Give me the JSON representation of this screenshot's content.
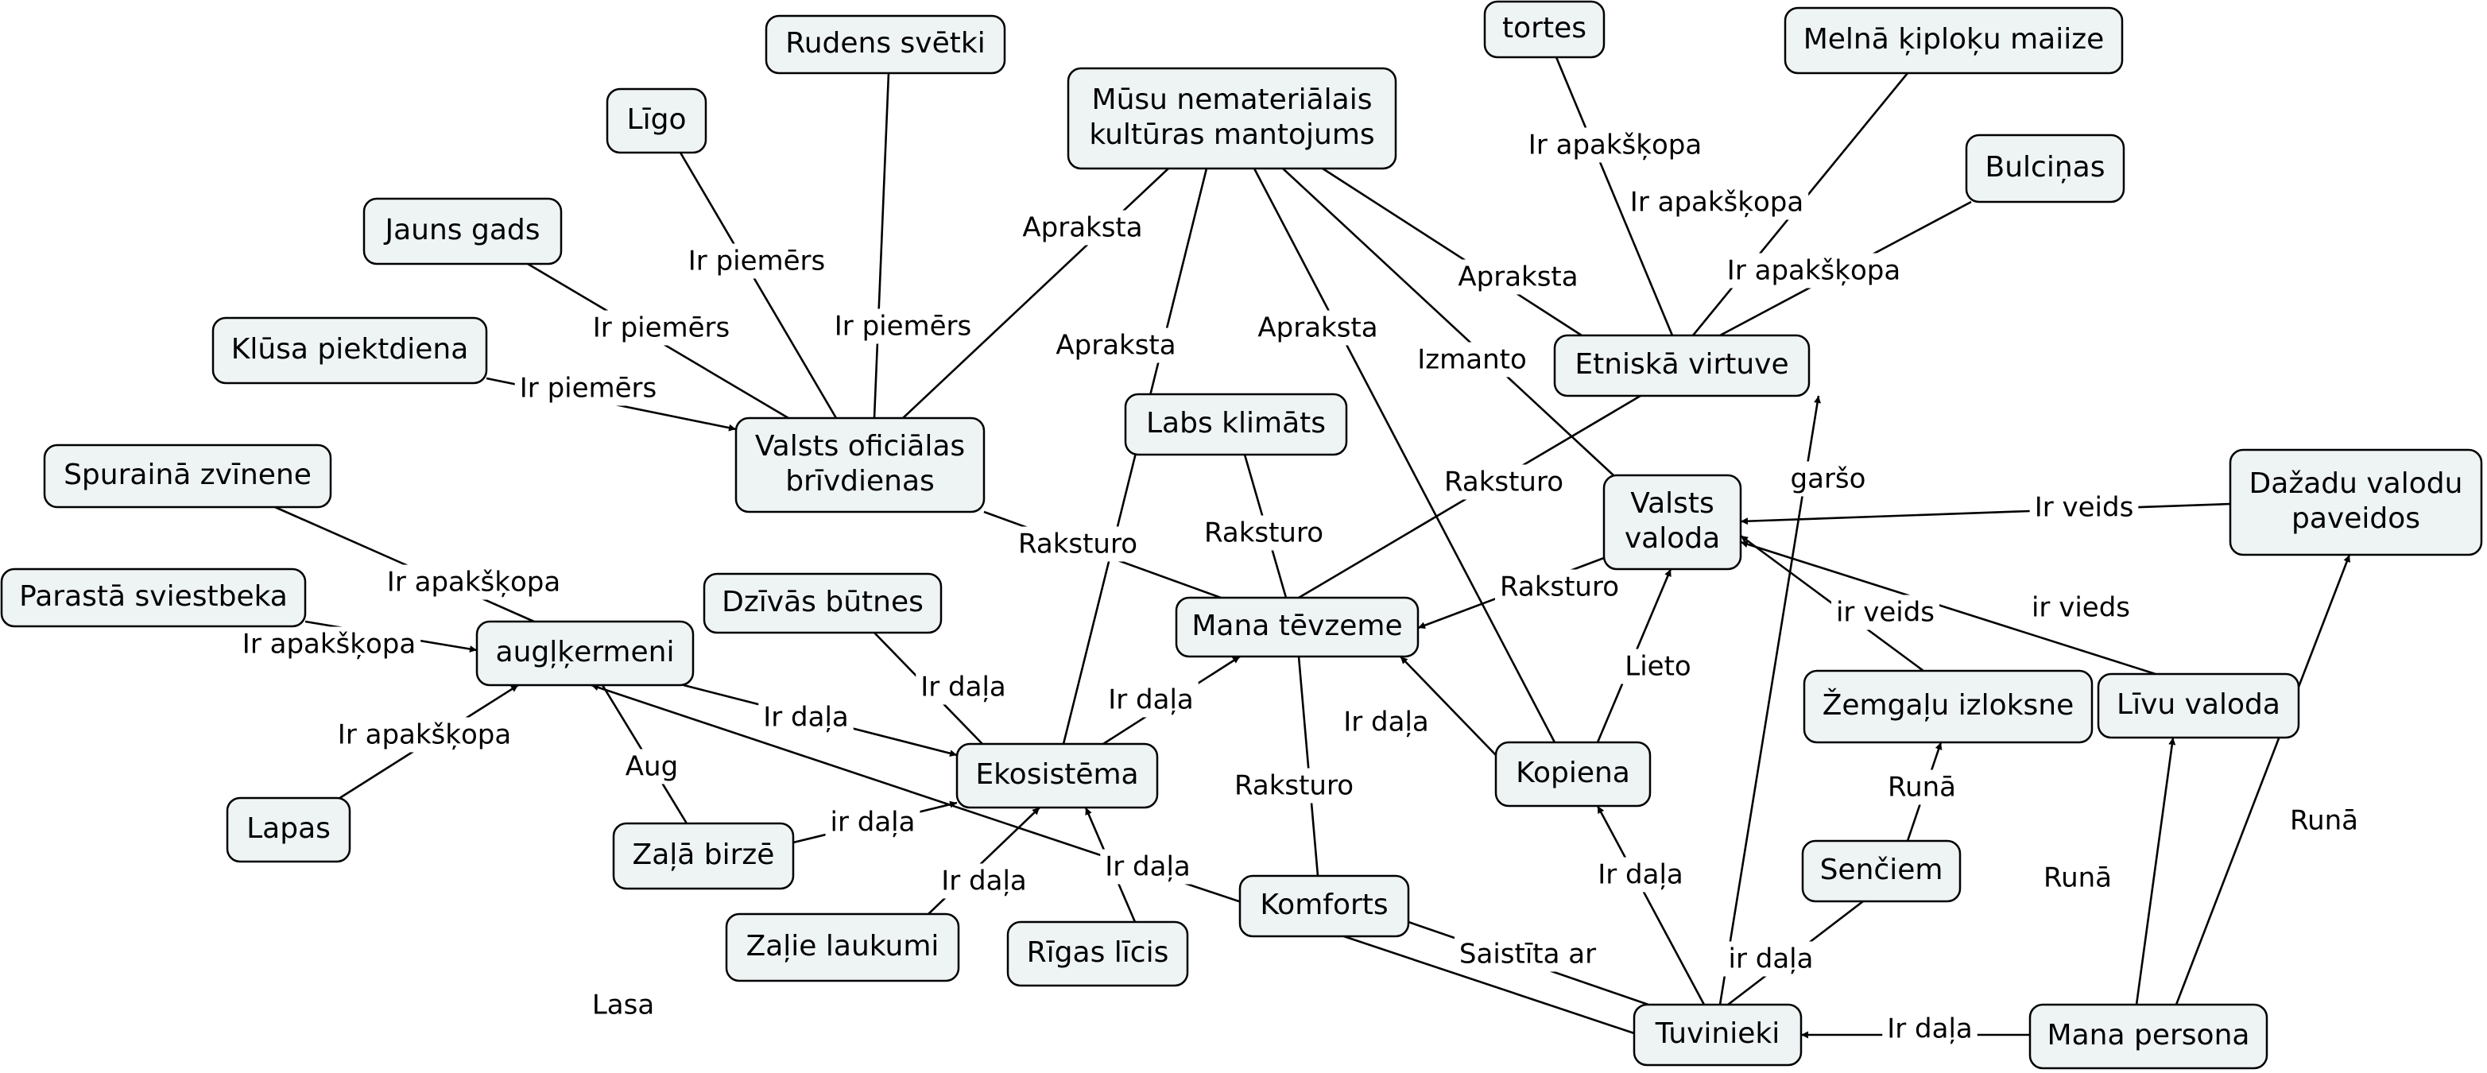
{
  "colors": {
    "background": "#ffffff",
    "node_fill": "#eef3f4",
    "node_border": "#000000",
    "edge": "#000000",
    "text": "#000000"
  },
  "nodes": [
    {
      "id": "musu",
      "lines": [
        "Mūsu nemateriālais",
        "kultūras mantojums"
      ]
    },
    {
      "id": "rudens",
      "lines": [
        "Rudens svētki"
      ]
    },
    {
      "id": "ligo",
      "lines": [
        "Līgo"
      ]
    },
    {
      "id": "jauns_gads",
      "lines": [
        "Jauns gads"
      ]
    },
    {
      "id": "klusa",
      "lines": [
        "Klūsa piektdiena"
      ]
    },
    {
      "id": "valsts_brivd",
      "lines": [
        "Valsts oficiālas",
        "brīvdienas"
      ]
    },
    {
      "id": "spuraina",
      "lines": [
        "Spurainā zvīnene"
      ]
    },
    {
      "id": "parasta",
      "lines": [
        "Parastā sviestbeka"
      ]
    },
    {
      "id": "auglkermeni",
      "lines": [
        "augļķermeni"
      ]
    },
    {
      "id": "lapas",
      "lines": [
        "Lapas"
      ]
    },
    {
      "id": "dzivas",
      "lines": [
        "Dzīvās būtnes"
      ]
    },
    {
      "id": "zala_birze",
      "lines": [
        "Zaļā birzē"
      ]
    },
    {
      "id": "ekosistema",
      "lines": [
        "Ekosistēma"
      ]
    },
    {
      "id": "zalie_laukumi",
      "lines": [
        "Zaļie laukumi"
      ]
    },
    {
      "id": "rigas_licis",
      "lines": [
        "Rīgas līcis"
      ]
    },
    {
      "id": "labs_klimats",
      "lines": [
        "Labs klimāts"
      ]
    },
    {
      "id": "mana_tevzeme",
      "lines": [
        "Mana tēvzeme"
      ]
    },
    {
      "id": "komforts",
      "lines": [
        "Komforts"
      ]
    },
    {
      "id": "tortes",
      "lines": [
        "tortes"
      ]
    },
    {
      "id": "melna",
      "lines": [
        "Melnā ķiploķu maiize"
      ]
    },
    {
      "id": "bulcinas",
      "lines": [
        "Bulciņas"
      ]
    },
    {
      "id": "etniska",
      "lines": [
        "Etniskā virtuve"
      ]
    },
    {
      "id": "valsts_valoda",
      "lines": [
        "Valsts",
        "valoda"
      ]
    },
    {
      "id": "dazadu",
      "lines": [
        "Dažadu valodu",
        "paveidos"
      ]
    },
    {
      "id": "kopiena",
      "lines": [
        "Kopiena"
      ]
    },
    {
      "id": "zemgalu",
      "lines": [
        "Žemgaļu izloksne"
      ]
    },
    {
      "id": "livu",
      "lines": [
        "Līvu valoda"
      ]
    },
    {
      "id": "senciem",
      "lines": [
        "Senčiem"
      ]
    },
    {
      "id": "tuvinieki",
      "lines": [
        "Tuvinieki"
      ]
    },
    {
      "id": "mana_persona",
      "lines": [
        "Mana persona"
      ]
    }
  ],
  "edges": [
    {
      "from": "musu",
      "to": "valsts_brivd",
      "label": "Apraksta",
      "arrow": false
    },
    {
      "from": "musu",
      "to": "ekosistema",
      "label": "Apraksta",
      "arrow": false
    },
    {
      "from": "musu",
      "to": "kopiena",
      "label": "Apraksta",
      "arrow": false
    },
    {
      "from": "musu",
      "to": "valsts_valoda",
      "label": "Izmanto",
      "arrow": false
    },
    {
      "from": "musu",
      "to": "etniska",
      "label": "Apraksta",
      "arrow": false
    },
    {
      "from": "rudens",
      "to": "valsts_brivd",
      "label": "Ir piemērs",
      "arrow": false
    },
    {
      "from": "ligo",
      "to": "valsts_brivd",
      "label": "Ir piemērs",
      "arrow": false
    },
    {
      "from": "jauns_gads",
      "to": "valsts_brivd",
      "label": "Ir piemērs",
      "arrow": false
    },
    {
      "from": "klusa",
      "to": "valsts_brivd",
      "label": "Ir piemērs",
      "arrow": true
    },
    {
      "from": "valsts_brivd",
      "to": "mana_tevzeme",
      "label": "Raksturo",
      "arrow": false
    },
    {
      "from": "spuraina",
      "to": "auglkermeni",
      "label": "Ir apakšķopa",
      "arrow": false
    },
    {
      "from": "parasta",
      "to": "auglkermeni",
      "label": "Ir apakšķopa",
      "arrow": true
    },
    {
      "from": "lapas",
      "to": "auglkermeni",
      "label": "Ir apakšķopa",
      "arrow": true
    },
    {
      "from": "auglkermeni",
      "to": "ekosistema",
      "label": "Ir daļa",
      "arrow": true
    },
    {
      "from": "auglkermeni",
      "to": "zala_birze",
      "label": "Aug",
      "arrow": false
    },
    {
      "from": "zala_birze",
      "to": "ekosistema",
      "label": "ir daļa",
      "arrow": true
    },
    {
      "from": "dzivas",
      "to": "ekosistema",
      "label": "Ir daļa",
      "arrow": false
    },
    {
      "from": "zalie_laukumi",
      "to": "ekosistema",
      "label": "Ir daļa",
      "arrow": true
    },
    {
      "from": "rigas_licis",
      "to": "ekosistema",
      "label": "Ir daļa",
      "arrow": true
    },
    {
      "from": "ekosistema",
      "to": "mana_tevzeme",
      "label": "Ir daļa",
      "arrow": true
    },
    {
      "from": "labs_klimats",
      "to": "mana_tevzeme",
      "label": "Raksturo",
      "arrow": false
    },
    {
      "from": "komforts",
      "to": "mana_tevzeme",
      "label": "Raksturo",
      "arrow": false
    },
    {
      "from": "etniska",
      "to": "mana_tevzeme",
      "label": "Raksturo",
      "arrow": false
    },
    {
      "from": "valsts_valoda",
      "to": "mana_tevzeme",
      "label": "Raksturo",
      "arrow": true
    },
    {
      "from": "kopiena",
      "to": "mana_tevzeme",
      "label": "Ir daļa",
      "arrow": true
    },
    {
      "from": "tortes",
      "to": "etniska",
      "label": "Ir apakšķopa",
      "arrow": false
    },
    {
      "from": "melna",
      "to": "etniska",
      "label": "Ir apakšķopa",
      "arrow": false
    },
    {
      "from": "bulcinas",
      "to": "etniska",
      "label": "Ir apakšķopa",
      "arrow": false
    },
    {
      "from": "dazadu",
      "to": "valsts_valoda",
      "label": "Ir veids",
      "arrow": true
    },
    {
      "from": "zemgalu",
      "to": "valsts_valoda",
      "label": "ir veids",
      "arrow": true
    },
    {
      "from": "livu",
      "to": "valsts_valoda",
      "label": "ir vieds",
      "arrow": true
    },
    {
      "from": "kopiena",
      "to": "valsts_valoda",
      "label": "Lieto",
      "arrow": true
    },
    {
      "from": "senciem",
      "to": "zemgalu",
      "label": "Runā",
      "arrow": true
    },
    {
      "from": "tuvinieki",
      "to": "etniska",
      "label": "garšo",
      "arrow": true
    },
    {
      "from": "tuvinieki",
      "to": "kopiena",
      "label": "Ir daļa",
      "arrow": true
    },
    {
      "from": "tuvinieki",
      "to": "senciem",
      "label": "ir daļa",
      "arrow": false
    },
    {
      "from": "tuvinieki",
      "to": "komforts",
      "label": "Saistīta ar",
      "arrow": false
    },
    {
      "from": "tuvinieki",
      "to": "auglkermeni",
      "label": "Lasa",
      "arrow": true
    },
    {
      "from": "mana_persona",
      "to": "tuvinieki",
      "label": "Ir daļa",
      "arrow": true
    },
    {
      "from": "mana_persona",
      "to": "livu",
      "label": "Runā",
      "arrow": true
    },
    {
      "from": "mana_persona",
      "to": "dazadu",
      "label": "Runā",
      "arrow": true
    }
  ]
}
